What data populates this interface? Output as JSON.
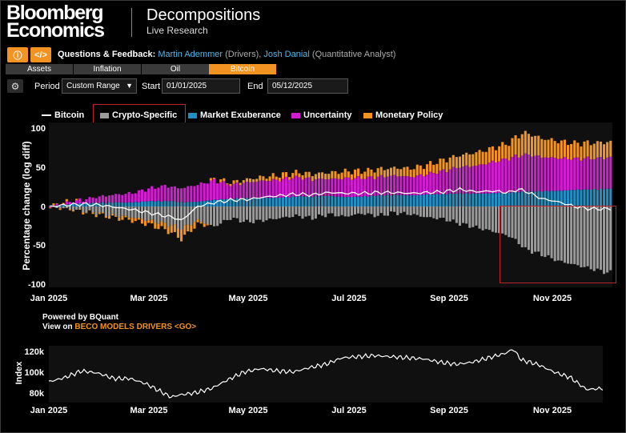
{
  "header": {
    "logo_line1": "Bloomberg",
    "logo_line2": "Economics",
    "title": "Decompositions",
    "subtitle": "Live Research"
  },
  "toolbar": {
    "info_icon": "info-icon",
    "code_icon": "code-icon",
    "feedback_label": "Questions & Feedback:",
    "contact1_name": "Martin Ademmer",
    "contact1_role": "(Drivers),",
    "contact2_name": "Josh Danial",
    "contact2_role": "(Quantitative Analyst)"
  },
  "tabs": [
    {
      "label": "Assets",
      "active": false
    },
    {
      "label": "Inflation",
      "active": false
    },
    {
      "label": "Oil",
      "active": false
    },
    {
      "label": "Bitcoin",
      "active": true
    }
  ],
  "filters": {
    "settings_icon": "gear-icon",
    "period_label": "Period",
    "period_value": "Custom Range",
    "start_label": "Start",
    "start_value": "01/01/2025",
    "end_label": "End",
    "end_value": "05/12/2025"
  },
  "legend": [
    {
      "label": "Bitcoin",
      "color": "#ffffff",
      "kind": "line"
    },
    {
      "label": "Crypto-Specific",
      "color": "#9a9a9a",
      "kind": "box"
    },
    {
      "label": "Market Exuberance",
      "color": "#1f8fc4",
      "kind": "box"
    },
    {
      "label": "Uncertainty",
      "color": "#d21cd2",
      "kind": "box"
    },
    {
      "label": "Monetary Policy",
      "color": "#f29322",
      "kind": "box"
    }
  ],
  "footer": {
    "powered_by": "Powered by BQuant",
    "view_on_prefix": "View on",
    "view_on_cmd": "BECO MODELS DRIVERS <GO>"
  },
  "chart_data": [
    {
      "type": "bar",
      "stacked": true,
      "ylabel": "Percentage change (log diff)",
      "ylim": [
        -100,
        100
      ],
      "yticks": [
        "100",
        "50",
        "0",
        "-50",
        "-100"
      ],
      "xticks": [
        "Jan 2025",
        "Mar 2025",
        "May 2025",
        "Jul 2025",
        "Sep 2025",
        "Nov 2025"
      ],
      "xlim_days": [
        0,
        342
      ],
      "knots": {
        "day": [
          0,
          10,
          20,
          30,
          40,
          50,
          60,
          70,
          75,
          80,
          90,
          100,
          110,
          120,
          130,
          140,
          150,
          160,
          170,
          180,
          190,
          200,
          210,
          220,
          230,
          240,
          250,
          260,
          270,
          280,
          285,
          290,
          300,
          310,
          320,
          330,
          340
        ],
        "crypto": [
          0,
          -3,
          -6,
          -9,
          -12,
          -14,
          -18,
          -22,
          -25,
          -28,
          -18,
          -26,
          -15,
          -20,
          -18,
          -15,
          -12,
          -15,
          -10,
          -13,
          -9,
          -12,
          -8,
          -10,
          -14,
          -16,
          -22,
          -27,
          -32,
          -38,
          -45,
          -55,
          -62,
          -70,
          -75,
          -80,
          -85
        ],
        "exuberance": [
          0,
          2,
          3,
          4,
          5,
          5,
          6,
          6,
          6,
          5,
          6,
          8,
          9,
          10,
          11,
          11,
          12,
          12,
          13,
          12,
          12,
          13,
          14,
          14,
          15,
          15,
          16,
          16,
          17,
          17,
          18,
          18,
          19,
          20,
          21,
          21,
          22
        ],
        "uncertainty": [
          0,
          2,
          5,
          8,
          10,
          12,
          16,
          20,
          18,
          18,
          22,
          25,
          18,
          20,
          22,
          23,
          25,
          22,
          22,
          24,
          24,
          24,
          25,
          24,
          26,
          30,
          34,
          36,
          40,
          44,
          46,
          48,
          44,
          42,
          40,
          40,
          40
        ],
        "monetary": [
          0,
          1,
          -1,
          -2,
          -3,
          -4,
          -5,
          -8,
          -10,
          -14,
          -5,
          2,
          3,
          4,
          5,
          6,
          6,
          7,
          8,
          9,
          9,
          10,
          10,
          11,
          12,
          14,
          15,
          17,
          18,
          20,
          26,
          28,
          24,
          22,
          20,
          20,
          20
        ],
        "bitcoin": [
          0,
          2,
          3,
          2,
          -1,
          -4,
          -8,
          -12,
          -14,
          -18,
          0,
          5,
          8,
          9,
          12,
          14,
          16,
          15,
          18,
          17,
          17,
          18,
          18,
          17,
          18,
          19,
          22,
          19,
          20,
          18,
          22,
          20,
          10,
          6,
          0,
          -3,
          -3
        ]
      },
      "series": [
        {
          "name": "Crypto-Specific",
          "color": "#9a9a9a"
        },
        {
          "name": "Market Exuberance",
          "color": "#1f8fc4"
        },
        {
          "name": "Uncertainty",
          "color": "#d21cd2"
        },
        {
          "name": "Monetary Policy",
          "color": "#f29322"
        },
        {
          "name": "Bitcoin",
          "color": "#ffffff"
        }
      ]
    },
    {
      "type": "line",
      "ylabel": "Index",
      "ylim": [
        75000,
        127000
      ],
      "yticks": [
        "120k",
        "100k",
        "80k"
      ],
      "ytick_values": [
        120000,
        100000,
        80000
      ],
      "xticks": [
        "Jan 2025",
        "Mar 2025",
        "May 2025",
        "Jul 2025",
        "Sep 2025",
        "Nov 2025"
      ],
      "knots": {
        "day": [
          0,
          10,
          20,
          30,
          40,
          50,
          60,
          70,
          75,
          80,
          90,
          100,
          110,
          120,
          130,
          140,
          150,
          160,
          170,
          180,
          190,
          200,
          210,
          220,
          230,
          240,
          250,
          260,
          270,
          280,
          285,
          290,
          300,
          310,
          320,
          330,
          340
        ],
        "value": [
          94000,
          98000,
          104000,
          102000,
          97000,
          97000,
          92000,
          84000,
          80000,
          82000,
          84000,
          88000,
          96000,
          103000,
          106000,
          104000,
          103000,
          107000,
          110000,
          116000,
          117000,
          118000,
          117000,
          116000,
          115000,
          112000,
          110000,
          112000,
          116000,
          120000,
          124000,
          114000,
          110000,
          103000,
          98000,
          87000,
          88000
        ]
      }
    }
  ]
}
